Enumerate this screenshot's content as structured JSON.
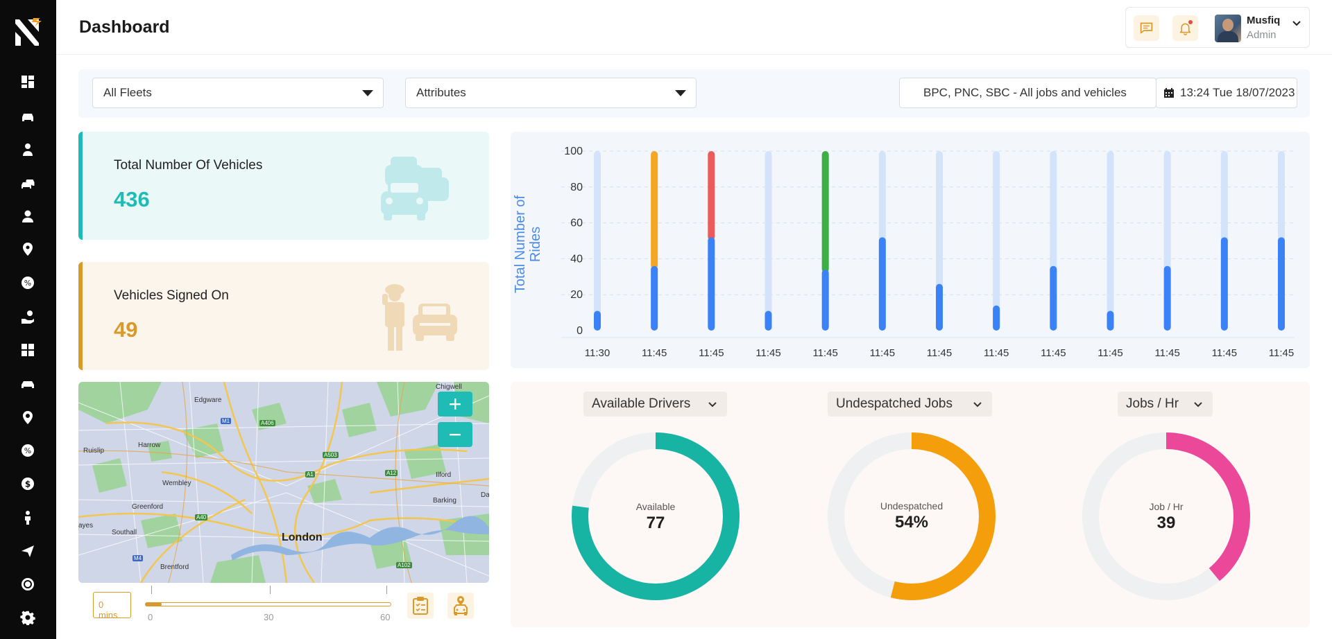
{
  "header": {
    "title": "Dashboard"
  },
  "user": {
    "name": "Musfiq",
    "role": "Admin"
  },
  "sidebar": {
    "icons": [
      "dashboard-icon",
      "car-icon",
      "driver-icon",
      "cars-icon",
      "user-icon",
      "location-icon",
      "discount-icon",
      "hand-coin-icon",
      "apps-grid-icon",
      "vehicle-icon",
      "location-alt-icon",
      "percent-badge-icon",
      "dollar-icon",
      "person-icon",
      "send-icon",
      "gear-alt-icon",
      "settings-icon"
    ]
  },
  "filters": {
    "fleets": "All Fleets",
    "attributes": "Attributes",
    "scope": "BPC, PNC, SBC -  All jobs and vehicles",
    "datetime": "13:24 Tue 18/07/2023"
  },
  "stats": {
    "total": {
      "label": "Total Number Of Vehicles",
      "value": "436",
      "color": "#1ebcb4"
    },
    "signed": {
      "label": "Vehicles Signed On",
      "value": "49",
      "color": "#d89a2a"
    }
  },
  "map": {
    "center_label": "London",
    "places": [
      "Chigwell",
      "Edgware",
      "Harrow",
      "Ruislip",
      "Wembley",
      "Greenford",
      "Ilford",
      "Barking",
      "Southall",
      "Brentford",
      "ayes",
      "Da"
    ],
    "roads": [
      "M1",
      "A406",
      "A503",
      "A12",
      "A1",
      "A40",
      "M4",
      "A102"
    ]
  },
  "timeline": {
    "value": "0",
    "unit": "mins",
    "ticks": [
      "0",
      "30",
      "60"
    ]
  },
  "chart_data": {
    "type": "bar",
    "ylabel": "Total Number of Rides",
    "ylim": [
      0,
      100
    ],
    "yticks": [
      "0",
      "20",
      "40",
      "60",
      "80",
      "100"
    ],
    "categories": [
      "11:30",
      "11:45",
      "11:45",
      "11:45",
      "11:45",
      "11:45",
      "11:45",
      "11:45",
      "11:45",
      "11:45",
      "11:45",
      "11:45",
      "11:45"
    ],
    "series": [
      {
        "values": [
          11,
          36,
          52,
          11,
          34,
          52,
          26,
          14,
          36,
          11,
          36,
          52,
          52
        ],
        "color": "#3b82f6"
      },
      {
        "values": [
          0,
          64,
          48,
          0,
          66,
          0,
          0,
          0,
          0,
          0,
          0,
          0,
          0
        ],
        "colors": [
          "",
          "#f5a623",
          "#ec5a5a",
          "",
          "#3cb043",
          "",
          "",
          "",
          "",
          "",
          "",
          "",
          ""
        ]
      }
    ],
    "track_color": "#d3e3fa"
  },
  "gauges": [
    {
      "selector": "Available Drivers",
      "caption": "Available",
      "value": "77",
      "fraction": 0.77,
      "color": "#17b3a3"
    },
    {
      "selector": "Undespatched Jobs",
      "caption": "Undespatched",
      "value": "54%",
      "fraction": 0.54,
      "color": "#f59e0b"
    },
    {
      "selector": "Jobs / Hr",
      "caption": "Job / Hr",
      "value": "39",
      "fraction": 0.39,
      "color": "#ec4899"
    }
  ]
}
